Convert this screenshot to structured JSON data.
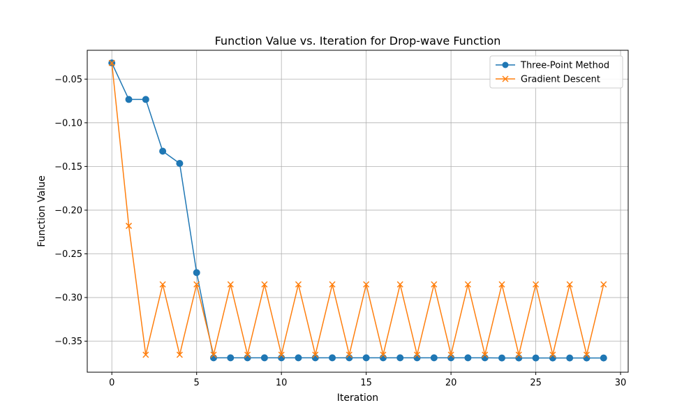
{
  "chart_data": {
    "type": "line",
    "title": "Function Value vs. Iteration for Drop-wave Function",
    "xlabel": "Iteration",
    "ylabel": "Function Value",
    "xlim": [
      -1.45,
      30.45
    ],
    "ylim": [
      -0.3855,
      -0.017
    ],
    "xticks": [
      0,
      5,
      10,
      15,
      20,
      25,
      30
    ],
    "yticks": [
      -0.35,
      -0.3,
      -0.25,
      -0.2,
      -0.15,
      -0.1,
      -0.05
    ],
    "grid": true,
    "legend_position": "top-right",
    "x": [
      0,
      1,
      2,
      3,
      4,
      5,
      6,
      7,
      8,
      9,
      10,
      11,
      12,
      13,
      14,
      15,
      16,
      17,
      18,
      19,
      20,
      21,
      22,
      23,
      24,
      25,
      26,
      27,
      28,
      29
    ],
    "series": [
      {
        "name": "Three-Point Method",
        "color": "#1f77b4",
        "marker": "circle",
        "values": [
          -0.0315,
          -0.0733,
          -0.0733,
          -0.1325,
          -0.1465,
          -0.2715,
          -0.369,
          -0.369,
          -0.369,
          -0.369,
          -0.369,
          -0.369,
          -0.369,
          -0.369,
          -0.369,
          -0.369,
          -0.369,
          -0.369,
          -0.369,
          -0.369,
          -0.369,
          -0.369,
          -0.369,
          -0.3692,
          -0.3692,
          -0.3692,
          -0.3692,
          -0.3692,
          -0.3692,
          -0.3692
        ]
      },
      {
        "name": "Gradient Descent",
        "color": "#ff7f0e",
        "marker": "x",
        "values": [
          -0.0315,
          -0.218,
          -0.3655,
          -0.285,
          -0.3655,
          -0.285,
          -0.3655,
          -0.285,
          -0.3655,
          -0.285,
          -0.3655,
          -0.285,
          -0.3655,
          -0.285,
          -0.3655,
          -0.285,
          -0.3655,
          -0.285,
          -0.3655,
          -0.285,
          -0.3655,
          -0.285,
          -0.3655,
          -0.285,
          -0.3655,
          -0.285,
          -0.3655,
          -0.285,
          -0.3655,
          -0.285
        ]
      }
    ]
  }
}
